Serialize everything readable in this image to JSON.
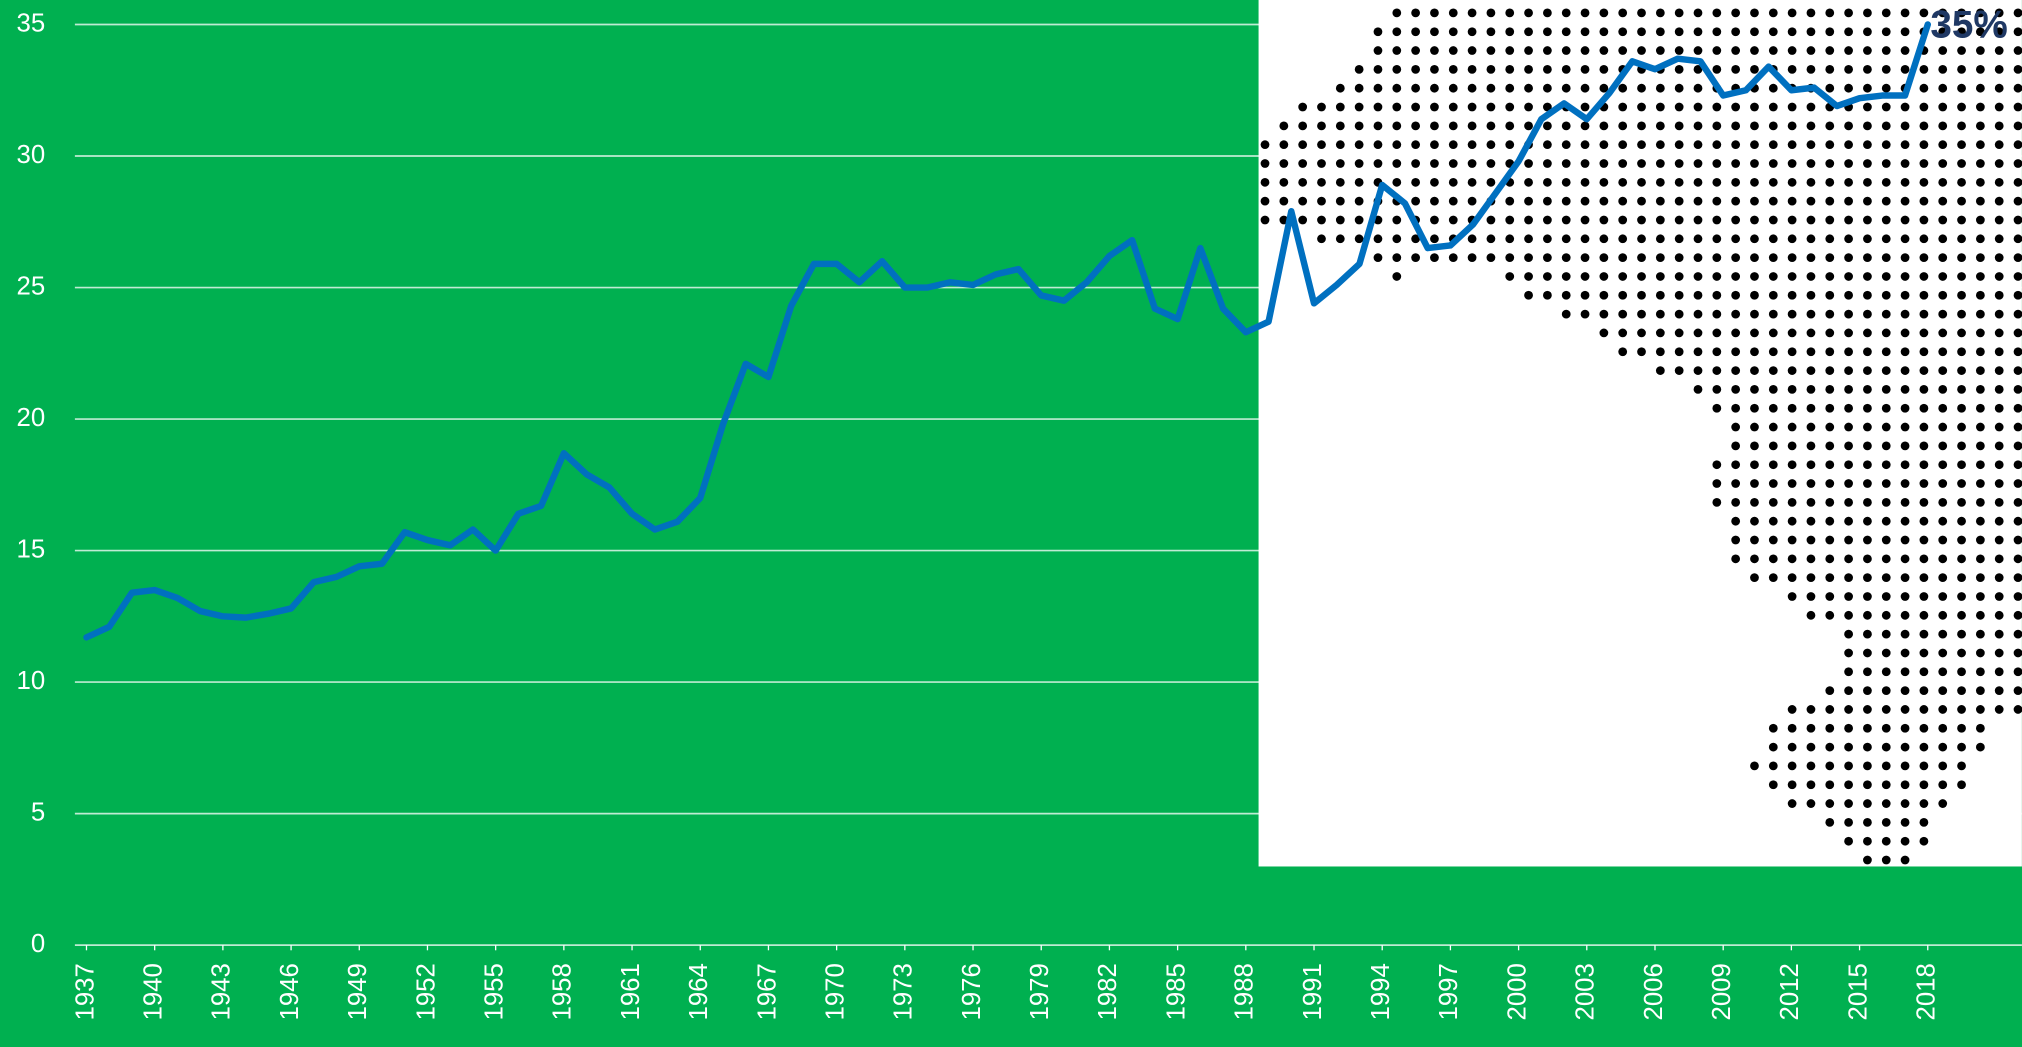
{
  "chart_data": {
    "type": "line",
    "x": [
      1937,
      1938,
      1939,
      1940,
      1941,
      1942,
      1943,
      1944,
      1945,
      1946,
      1947,
      1948,
      1949,
      1950,
      1951,
      1952,
      1953,
      1954,
      1955,
      1956,
      1957,
      1958,
      1959,
      1960,
      1961,
      1962,
      1963,
      1964,
      1965,
      1966,
      1967,
      1968,
      1969,
      1970,
      1971,
      1972,
      1973,
      1974,
      1975,
      1976,
      1977,
      1978,
      1979,
      1980,
      1981,
      1982,
      1983,
      1984,
      1985,
      1986,
      1987,
      1988,
      1989,
      1990,
      1991,
      1992,
      1993,
      1994,
      1995,
      1996,
      1997,
      1998,
      1999,
      2000,
      2001,
      2002,
      2003,
      2004,
      2005,
      2006,
      2007,
      2008,
      2009,
      2010,
      2011,
      2012,
      2013,
      2014,
      2015,
      2016,
      2017,
      2018
    ],
    "series": [
      {
        "color": "#0070c0",
        "values": [
          11.7,
          12.1,
          13.4,
          13.5,
          13.2,
          12.7,
          12.5,
          12.45,
          12.6,
          12.8,
          13.8,
          14.0,
          14.4,
          14.5,
          15.7,
          15.4,
          15.2,
          15.8,
          15.0,
          16.4,
          16.7,
          18.7,
          17.9,
          17.4,
          16.4,
          15.8,
          16.1,
          17.0,
          19.8,
          22.1,
          21.6,
          24.3,
          25.9,
          25.9,
          25.2,
          26.0,
          25.0,
          25.0,
          25.2,
          25.1,
          25.5,
          25.7,
          24.7,
          24.5,
          25.2,
          26.2,
          26.8,
          24.2,
          23.8,
          26.5,
          24.2,
          23.3,
          23.7,
          27.9,
          24.4,
          25.1,
          25.9,
          28.9,
          28.2,
          26.5,
          26.6,
          27.4,
          28.6,
          29.8,
          31.4,
          32.0,
          31.4,
          32.4,
          33.6,
          33.3,
          33.7,
          33.6,
          32.3,
          32.5,
          33.4,
          32.5,
          32.6,
          31.9,
          32.2,
          32.3,
          32.3,
          35.0
        ],
        "value_labels": [
          null,
          null,
          null,
          null,
          null,
          null,
          null,
          null,
          null,
          null,
          null,
          null,
          null,
          null,
          null,
          null,
          null,
          null,
          null,
          null,
          null,
          null,
          null,
          null,
          null,
          null,
          null,
          null,
          null,
          null,
          null,
          null,
          null,
          null,
          null,
          null,
          null,
          null,
          null,
          null,
          null,
          null,
          null,
          null,
          null,
          null,
          null,
          null,
          null,
          null,
          null,
          null,
          null,
          null,
          null,
          null,
          null,
          null,
          null,
          null,
          null,
          null,
          null,
          null,
          null,
          null,
          null,
          null,
          null,
          null,
          null,
          null,
          null,
          null,
          null,
          null,
          null,
          null,
          null,
          null,
          null,
          "35%"
        ]
      }
    ],
    "xlim": [
      1937,
      2018
    ],
    "xticks": [
      1937,
      1940,
      1943,
      1946,
      1949,
      1952,
      1955,
      1958,
      1961,
      1964,
      1967,
      1970,
      1973,
      1976,
      1979,
      1982,
      1985,
      1988,
      1991,
      1994,
      1997,
      2000,
      2003,
      2006,
      2009,
      2012,
      2015,
      2018
    ],
    "ylim": [
      0,
      35
    ],
    "yticks": [
      0,
      5,
      10,
      15,
      20,
      25,
      30,
      35
    ],
    "grid": true
  }
}
